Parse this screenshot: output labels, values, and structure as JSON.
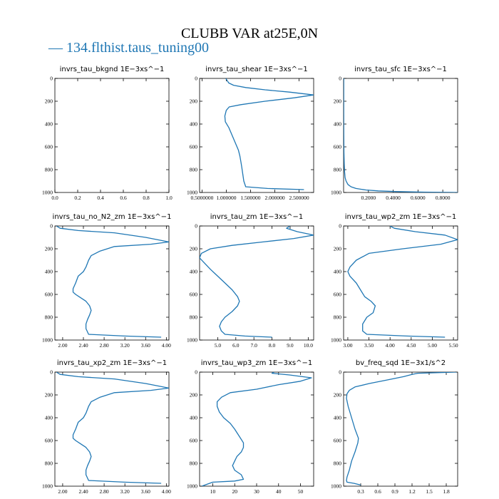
{
  "figure": {
    "title": "CLUBB VAR at25E,0N",
    "legend_label": "— 134.flthist.taus_tuning00",
    "series_color": "#1f77b4"
  },
  "chart_data": [
    {
      "type": "line",
      "title": "invrs_tau_bkgnd   1E−3xs^−1",
      "xlim": [
        0,
        1.0
      ],
      "ylim": [
        1000,
        0
      ],
      "xticks": [
        "0.0",
        "0.2",
        "0.4",
        "0.6",
        "0.8",
        "1.0"
      ],
      "yticks": [
        0,
        200,
        400,
        600,
        800,
        1000
      ],
      "series": [
        {
          "x": [],
          "y": []
        }
      ]
    },
    {
      "type": "line",
      "title": "invrs_tau_shear   1E−3xs^−1",
      "xlim": [
        0.45,
        2.8
      ],
      "ylim": [
        1000,
        0
      ],
      "xticks": [
        "0.5000000",
        "1.000000",
        "1.500000",
        "2.000000",
        "2.500000"
      ],
      "xtick_values": [
        0.5,
        1.0,
        1.5,
        2.0,
        2.5
      ],
      "yticks": [
        0,
        200,
        400,
        600,
        800,
        1000
      ],
      "series": [
        {
          "x": [
            0.99,
            1.02,
            1.05,
            1.15,
            1.4,
            1.8,
            2.3,
            2.8,
            2.4,
            1.8,
            1.3,
            1.06,
            1.0,
            0.97,
            0.98,
            1.05,
            1.1,
            1.15,
            1.2,
            1.25,
            1.28,
            1.3,
            1.32,
            1.34,
            1.36,
            1.4,
            1.85,
            2.6
          ],
          "y": [
            0,
            20,
            40,
            60,
            80,
            100,
            120,
            145,
            170,
            200,
            230,
            250,
            280,
            330,
            380,
            430,
            480,
            530,
            580,
            630,
            680,
            730,
            780,
            840,
            900,
            950,
            965,
            975
          ]
        }
      ]
    },
    {
      "type": "line",
      "title": "invrs_tau_sfc   1E−3xs^−1",
      "xlim": [
        0,
        0.92
      ],
      "ylim": [
        1000,
        0
      ],
      "xticks": [
        "0.2000",
        "0.4000",
        "0.6000",
        "0.8000"
      ],
      "xtick_values": [
        0.2,
        0.4,
        0.6,
        0.8
      ],
      "yticks": [
        0,
        200,
        400,
        600,
        800,
        1000
      ],
      "series": [
        {
          "x": [
            0.001,
            0.001,
            0.002,
            0.003,
            0.005,
            0.008,
            0.012,
            0.02,
            0.035,
            0.06,
            0.1,
            0.18,
            0.28,
            0.42,
            0.65,
            0.92
          ],
          "y": [
            0,
            300,
            500,
            650,
            750,
            820,
            870,
            900,
            930,
            950,
            965,
            978,
            986,
            992,
            997,
            1000
          ]
        }
      ]
    },
    {
      "type": "line",
      "title": "invrs_tau_no_N2_zm   1E−3xs^−1",
      "xlim": [
        1.85,
        4.05
      ],
      "ylim": [
        1000,
        0
      ],
      "xticks": [
        "2.00",
        "2.40",
        "2.80",
        "3.20",
        "3.60",
        "4.00"
      ],
      "xtick_values": [
        2.0,
        2.4,
        2.8,
        3.2,
        3.6,
        4.0
      ],
      "yticks": [
        0,
        200,
        400,
        600,
        800,
        1000
      ],
      "series": [
        {
          "x": [
            1.88,
            1.95,
            2.3,
            3.0,
            3.6,
            4.05,
            3.7,
            3.0,
            2.72,
            2.55,
            2.5,
            2.45,
            2.4,
            2.3,
            2.25,
            2.2,
            2.2,
            2.25,
            2.35,
            2.45,
            2.52,
            2.55,
            2.52,
            2.48,
            2.45,
            2.45,
            2.5,
            3.2,
            3.9
          ],
          "y": [
            0,
            20,
            40,
            60,
            100,
            140,
            160,
            180,
            220,
            260,
            300,
            360,
            400,
            440,
            500,
            550,
            580,
            600,
            630,
            660,
            700,
            740,
            780,
            820,
            860,
            900,
            950,
            965,
            975
          ]
        }
      ]
    },
    {
      "type": "line",
      "title": "invrs_tau_zm   1E−3xs^−1",
      "xlim": [
        4.0,
        10.3
      ],
      "ylim": [
        1000,
        0
      ],
      "xticks": [
        "5.0",
        "6.0",
        "7.0",
        "8.0",
        "9.0",
        "10.0"
      ],
      "xtick_values": [
        5.0,
        6.0,
        7.0,
        8.0,
        9.0,
        10.0
      ],
      "yticks": [
        0,
        200,
        400,
        600,
        800,
        1000
      ],
      "series": [
        {
          "x": [
            9.0,
            8.8,
            9.4,
            10.3,
            9.2,
            7.5,
            5.8,
            4.6,
            4.1,
            4.0,
            4.3,
            4.6,
            5.0,
            5.4,
            5.8,
            6.1,
            6.2,
            6.1,
            5.8,
            5.4,
            5.2,
            5.1,
            5.2,
            5.4,
            6.5,
            8.0
          ],
          "y": [
            0,
            20,
            50,
            80,
            110,
            140,
            170,
            200,
            240,
            280,
            330,
            380,
            440,
            500,
            560,
            620,
            660,
            700,
            750,
            800,
            840,
            880,
            920,
            950,
            965,
            975
          ]
        }
      ]
    },
    {
      "type": "line",
      "title": "invrs_tau_wp2_zm   1E−3xs^−1",
      "xlim": [
        2.9,
        5.6
      ],
      "ylim": [
        1000,
        0
      ],
      "xticks": [
        "3.00",
        "3.50",
        "4.00",
        "4.50",
        "5.00",
        "5.50"
      ],
      "xtick_values": [
        3.0,
        3.5,
        4.0,
        4.5,
        5.0,
        5.5
      ],
      "yticks": [
        0,
        200,
        400,
        600,
        800,
        1000
      ],
      "series": [
        {
          "x": [
            4.0,
            4.1,
            4.6,
            5.3,
            5.6,
            5.2,
            4.3,
            3.5,
            3.2,
            3.05,
            3.0,
            3.05,
            3.2,
            3.3,
            3.4,
            3.55,
            3.65,
            3.6,
            3.45,
            3.35,
            3.35,
            3.45,
            4.4,
            5.3
          ],
          "y": [
            0,
            20,
            50,
            80,
            120,
            160,
            200,
            240,
            300,
            360,
            400,
            440,
            500,
            560,
            620,
            660,
            700,
            760,
            800,
            860,
            920,
            950,
            965,
            975
          ]
        }
      ]
    },
    {
      "type": "line",
      "title": "invrs_tau_xp2_zm   1E−3xs^−1",
      "xlim": [
        1.85,
        4.05
      ],
      "ylim": [
        1000,
        0
      ],
      "xticks": [
        "2.00",
        "2.40",
        "2.80",
        "3.20",
        "3.60",
        "4.00"
      ],
      "xtick_values": [
        2.0,
        2.4,
        2.8,
        3.2,
        3.6,
        4.0
      ],
      "yticks": [
        0,
        200,
        400,
        600,
        800,
        1000
      ],
      "series": [
        {
          "x": [
            1.88,
            1.95,
            2.3,
            3.0,
            3.6,
            4.05,
            3.7,
            3.0,
            2.72,
            2.55,
            2.5,
            2.45,
            2.4,
            2.3,
            2.25,
            2.2,
            2.2,
            2.25,
            2.35,
            2.45,
            2.52,
            2.55,
            2.52,
            2.48,
            2.45,
            2.45,
            2.5,
            3.2,
            3.9
          ],
          "y": [
            0,
            20,
            40,
            60,
            100,
            140,
            160,
            180,
            220,
            260,
            300,
            360,
            400,
            440,
            500,
            550,
            580,
            600,
            630,
            660,
            700,
            740,
            780,
            820,
            860,
            900,
            950,
            965,
            975
          ]
        }
      ]
    },
    {
      "type": "line",
      "title": "invrs_tau_wp3_zm   1E−3xs^−1",
      "xlim": [
        4.0,
        56.0
      ],
      "ylim": [
        1000,
        0
      ],
      "xticks": [
        "10",
        "20",
        "30",
        "40",
        "50"
      ],
      "xtick_values": [
        10,
        20,
        30,
        40,
        50
      ],
      "yticks": [
        0,
        200,
        400,
        600,
        800,
        1000
      ],
      "series": [
        {
          "x": [
            38,
            37,
            45,
            55,
            50,
            40,
            30,
            18,
            14,
            12,
            12,
            13,
            15,
            18,
            20,
            22,
            24,
            24,
            23,
            21,
            20,
            19,
            20,
            23,
            24,
            20,
            10,
            5
          ],
          "y": [
            0,
            10,
            25,
            50,
            80,
            110,
            150,
            180,
            220,
            260,
            300,
            350,
            400,
            450,
            500,
            560,
            620,
            660,
            700,
            740,
            780,
            820,
            860,
            900,
            940,
            955,
            965,
            1000
          ]
        }
      ]
    },
    {
      "type": "line",
      "title": "bv_freq_sqd   1E−3x1/s^2",
      "xlim": [
        0.0,
        2.0
      ],
      "ylim": [
        1000,
        0
      ],
      "xticks": [
        "0.3",
        "0.6",
        "0.9",
        "1.2",
        "1.5",
        "1.8"
      ],
      "xtick_values": [
        0.3,
        0.6,
        0.9,
        1.2,
        1.5,
        1.8
      ],
      "yticks": [
        0,
        200,
        400,
        600,
        800,
        1000
      ],
      "series": [
        {
          "x": [
            1.98,
            1.3,
            1.2,
            1.05,
            0.75,
            0.45,
            0.2,
            0.1,
            0.06,
            0.05,
            0.08,
            0.14,
            0.2,
            0.26,
            0.25,
            0.2,
            0.14,
            0.1,
            0.06,
            0.05,
            0.06,
            0.18,
            0.3
          ],
          "y": [
            0,
            10,
            20,
            40,
            70,
            100,
            130,
            160,
            190,
            230,
            300,
            400,
            500,
            580,
            620,
            700,
            780,
            860,
            920,
            950,
            965,
            975,
            990
          ]
        }
      ]
    }
  ]
}
